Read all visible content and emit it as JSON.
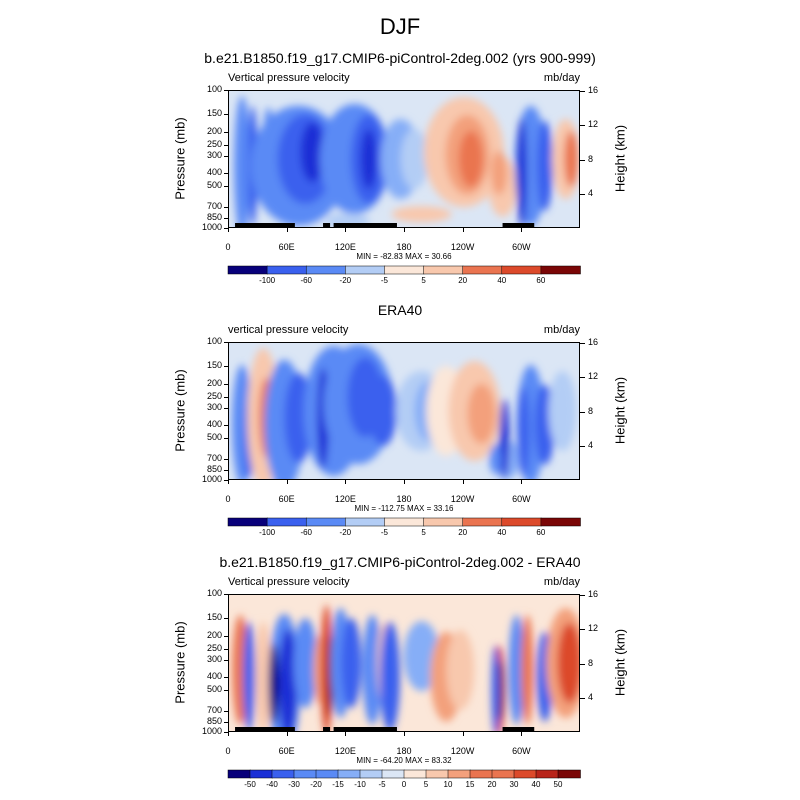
{
  "figure_title": "DJF",
  "chart_data": [
    {
      "type": "heatmap",
      "title": "b.e21.B1850.f19_g17.CMIP6-piControl-2deg.002 (yrs 900-999)",
      "left_label": "Vertical pressure velocity",
      "right_label": "mb/day",
      "ylabel": "Pressure (mb)",
      "y2label": "Height (km)",
      "y_ticks": [
        "100",
        "150",
        "200",
        "250",
        "300",
        "400",
        "500",
        "700",
        "850",
        "1000"
      ],
      "y2_ticks": [
        "16",
        "12",
        "8",
        "4"
      ],
      "x_ticks": [
        "0",
        "60E",
        "120E",
        "180",
        "120W",
        "60W"
      ],
      "min_max": "MIN = -82.83  MAX = 30.66",
      "colorbar_labels": [
        "-100",
        "-60",
        "-20",
        "-5",
        "5",
        "20",
        "40",
        "60"
      ],
      "value_range": [
        -82.83,
        30.66
      ]
    },
    {
      "type": "heatmap",
      "title": "ERA40",
      "left_label": "vertical pressure velocity",
      "right_label": "mb/day",
      "ylabel": "Pressure (mb)",
      "y2label": "Height (km)",
      "y_ticks": [
        "100",
        "150",
        "200",
        "250",
        "300",
        "400",
        "500",
        "700",
        "850",
        "1000"
      ],
      "y2_ticks": [
        "16",
        "12",
        "8",
        "4"
      ],
      "x_ticks": [
        "0",
        "60E",
        "120E",
        "180",
        "120W",
        "60W"
      ],
      "min_max": "MIN = -112.75  MAX = 33.16",
      "colorbar_labels": [
        "-100",
        "-60",
        "-20",
        "-5",
        "5",
        "20",
        "40",
        "60"
      ],
      "value_range": [
        -112.75,
        33.16
      ]
    },
    {
      "type": "heatmap",
      "title": "b.e21.B1850.f19_g17.CMIP6-piControl-2deg.002 - ERA40",
      "left_label": "Vertical pressure velocity",
      "right_label": "mb/day",
      "ylabel": "Pressure (mb)",
      "y2label": "Height (km)",
      "y_ticks": [
        "100",
        "150",
        "200",
        "250",
        "300",
        "400",
        "500",
        "700",
        "850",
        "1000"
      ],
      "y2_ticks": [
        "16",
        "12",
        "8",
        "4"
      ],
      "x_ticks": [
        "0",
        "60E",
        "120E",
        "180",
        "120W",
        "60W"
      ],
      "min_max": "MIN = -64.20  MAX = 83.32",
      "colorbar_labels": [
        "-50",
        "-40",
        "-30",
        "-20",
        "-15",
        "-10",
        "-5",
        "0",
        "5",
        "10",
        "15",
        "20",
        "30",
        "40",
        "50"
      ],
      "value_range": [
        -64.2,
        83.32
      ]
    }
  ],
  "palette": [
    "#08007a",
    "#1a2fd6",
    "#3a60ee",
    "#5a8af5",
    "#86aef7",
    "#b3cdf5",
    "#dbe6f5",
    "#fbe7d9",
    "#f8c8ad",
    "#f3a07c",
    "#ea7450",
    "#dc4a2b",
    "#b8241a",
    "#7a0606"
  ]
}
